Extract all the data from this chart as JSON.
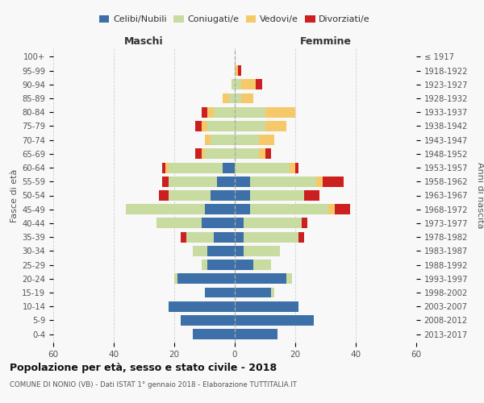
{
  "age_groups": [
    "0-4",
    "5-9",
    "10-14",
    "15-19",
    "20-24",
    "25-29",
    "30-34",
    "35-39",
    "40-44",
    "45-49",
    "50-54",
    "55-59",
    "60-64",
    "65-69",
    "70-74",
    "75-79",
    "80-84",
    "85-89",
    "90-94",
    "95-99",
    "100+"
  ],
  "birth_years": [
    "2013-2017",
    "2008-2012",
    "2003-2007",
    "1998-2002",
    "1993-1997",
    "1988-1992",
    "1983-1987",
    "1978-1982",
    "1973-1977",
    "1968-1972",
    "1963-1967",
    "1958-1962",
    "1953-1957",
    "1948-1952",
    "1943-1947",
    "1938-1942",
    "1933-1937",
    "1928-1932",
    "1923-1927",
    "1918-1922",
    "≤ 1917"
  ],
  "maschi": {
    "celibi": [
      14,
      18,
      22,
      10,
      19,
      9,
      9,
      7,
      11,
      10,
      8,
      6,
      4,
      0,
      0,
      0,
      0,
      0,
      0,
      0,
      0
    ],
    "coniugati": [
      0,
      0,
      0,
      0,
      1,
      2,
      5,
      9,
      15,
      26,
      14,
      16,
      18,
      10,
      8,
      9,
      7,
      2,
      1,
      0,
      0
    ],
    "vedovi": [
      0,
      0,
      0,
      0,
      0,
      0,
      0,
      0,
      0,
      0,
      0,
      0,
      1,
      1,
      2,
      2,
      2,
      2,
      0,
      0,
      0
    ],
    "divorziati": [
      0,
      0,
      0,
      0,
      0,
      0,
      0,
      2,
      0,
      0,
      3,
      2,
      1,
      2,
      0,
      2,
      2,
      0,
      0,
      0,
      0
    ]
  },
  "femmine": {
    "nubili": [
      14,
      26,
      21,
      12,
      17,
      6,
      3,
      3,
      3,
      5,
      5,
      5,
      0,
      0,
      0,
      0,
      0,
      0,
      0,
      0,
      0
    ],
    "coniugate": [
      0,
      0,
      0,
      1,
      2,
      6,
      12,
      18,
      19,
      26,
      18,
      22,
      18,
      8,
      8,
      10,
      10,
      2,
      2,
      0,
      0
    ],
    "vedove": [
      0,
      0,
      0,
      0,
      0,
      0,
      0,
      0,
      0,
      2,
      0,
      2,
      2,
      2,
      5,
      7,
      10,
      4,
      5,
      1,
      0
    ],
    "divorziate": [
      0,
      0,
      0,
      0,
      0,
      0,
      0,
      2,
      2,
      5,
      5,
      7,
      1,
      2,
      0,
      0,
      0,
      0,
      2,
      1,
      0
    ]
  },
  "colors": {
    "celibi": "#3d6fa8",
    "coniugati": "#c8dba0",
    "vedovi": "#f5c96a",
    "divorziati": "#cc2020"
  },
  "xlim": 60,
  "title": "Popolazione per età, sesso e stato civile - 2018",
  "subtitle": "COMUNE DI NONIO (VB) - Dati ISTAT 1° gennaio 2018 - Elaborazione TUTTITALIA.IT",
  "ylabel_left": "Fasce di età",
  "ylabel_right": "Anni di nascita",
  "xlabel_maschi": "Maschi",
  "xlabel_femmine": "Femmine",
  "bg_color": "#f8f8f8",
  "grid_color": "#cccccc"
}
